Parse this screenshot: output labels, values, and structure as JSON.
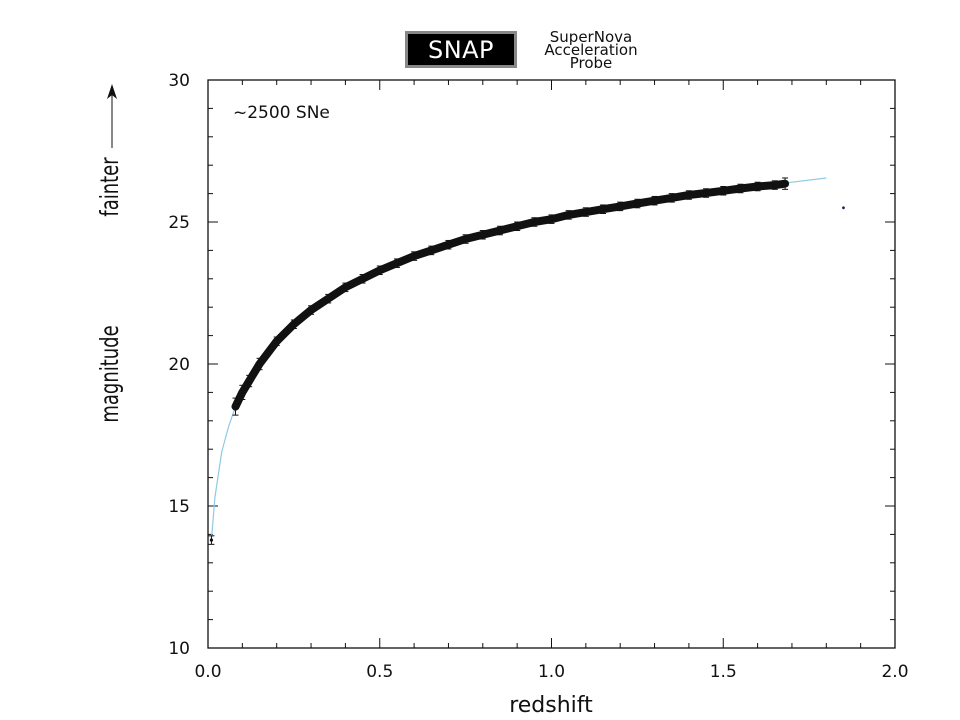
{
  "logo": {
    "word": "SNAP",
    "lines": [
      "SuperNova",
      "Acceleration",
      "Probe"
    ]
  },
  "chart_data": {
    "type": "scatter",
    "xlabel": "redshift",
    "ylabel": "magnitude",
    "ylabel_note": "fainter",
    "annotation": "~2500 SNe",
    "xlim": [
      0.0,
      2.0
    ],
    "ylim": [
      10,
      30
    ],
    "x_ticks": [
      0.0,
      0.5,
      1.0,
      1.5,
      2.0
    ],
    "x_tick_labels": [
      "0.0",
      "0.5",
      "1.0",
      "1.5",
      "2.0"
    ],
    "y_ticks": [
      10,
      15,
      20,
      25,
      30
    ],
    "y_tick_labels": [
      "10",
      "15",
      "20",
      "25",
      "30"
    ],
    "grid": false,
    "colors": {
      "points": "#111111",
      "model_curve": "#8ec9e6"
    },
    "series": [
      {
        "kind": "points_with_error_bars",
        "x": [
          0.01,
          0.08,
          0.1,
          0.12,
          0.15,
          0.2,
          0.25,
          0.3,
          0.35,
          0.4,
          0.45,
          0.5,
          0.55,
          0.6,
          0.65,
          0.7,
          0.75,
          0.8,
          0.85,
          0.9,
          0.95,
          1.0,
          1.05,
          1.1,
          1.15,
          1.2,
          1.25,
          1.3,
          1.35,
          1.4,
          1.45,
          1.5,
          1.55,
          1.6,
          1.65,
          1.68
        ],
        "y": [
          13.8,
          18.5,
          19.0,
          19.4,
          20.0,
          20.8,
          21.4,
          21.9,
          22.3,
          22.7,
          23.0,
          23.3,
          23.55,
          23.8,
          24.0,
          24.2,
          24.4,
          24.55,
          24.7,
          24.85,
          25.0,
          25.1,
          25.25,
          25.35,
          25.45,
          25.55,
          25.65,
          25.75,
          25.85,
          25.95,
          26.02,
          26.1,
          26.18,
          26.25,
          26.3,
          26.35
        ],
        "err": [
          0.15,
          0.3,
          0.25,
          0.2,
          0.2,
          0.15,
          0.15,
          0.15,
          0.15,
          0.15,
          0.15,
          0.15,
          0.15,
          0.15,
          0.15,
          0.15,
          0.15,
          0.15,
          0.15,
          0.15,
          0.15,
          0.15,
          0.15,
          0.15,
          0.15,
          0.15,
          0.15,
          0.15,
          0.15,
          0.15,
          0.15,
          0.15,
          0.15,
          0.15,
          0.15,
          0.2
        ]
      },
      {
        "kind": "model_curve",
        "x": [
          0.01,
          0.02,
          0.04,
          0.06,
          0.08,
          0.1,
          0.15,
          0.2,
          0.3,
          0.4,
          0.5,
          0.6,
          0.7,
          0.8,
          0.9,
          1.0,
          1.1,
          1.2,
          1.3,
          1.4,
          1.5,
          1.6,
          1.7,
          1.8
        ],
        "y": [
          13.8,
          15.3,
          16.9,
          17.8,
          18.5,
          19.0,
          20.0,
          20.8,
          21.9,
          22.7,
          23.3,
          23.8,
          24.2,
          24.55,
          24.85,
          25.1,
          25.35,
          25.55,
          25.75,
          25.95,
          26.1,
          26.25,
          26.4,
          26.55
        ]
      },
      {
        "kind": "isolated_point",
        "x": [
          1.85
        ],
        "y": [
          25.5
        ]
      }
    ]
  }
}
